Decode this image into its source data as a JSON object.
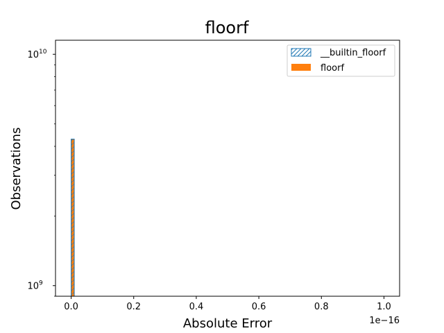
{
  "chart_data": {
    "type": "bar",
    "title": "floorf",
    "xlabel": "Absolute Error",
    "ylabel": "Observations",
    "x_offset_label": "1e−16",
    "xlim": [
      -0.05,
      1.05
    ],
    "x_ticks": [
      0.0,
      0.2,
      0.4,
      0.6,
      0.8,
      1.0
    ],
    "x_tick_labels": [
      "0.0",
      "0.2",
      "0.4",
      "0.6",
      "0.8",
      "1.0"
    ],
    "yscale": "log",
    "ylim": [
      900000000,
      11500000000
    ],
    "y_ticks": [
      {
        "value": 1000000000,
        "base": "10",
        "exp": "9"
      },
      {
        "value": 10000000000,
        "base": "10",
        "exp": "10"
      }
    ],
    "grid": false,
    "legend_position": "top-right",
    "series": [
      {
        "name": "__builtin_floorf",
        "style": "hatched-outline",
        "color": "#1f77b4",
        "bins": [
          {
            "x0": 0.0,
            "x1": 0.01,
            "count": 4300000000
          }
        ]
      },
      {
        "name": "floorf",
        "style": "filled",
        "color": "#ff7f0e",
        "bins": [
          {
            "x0": 0.0,
            "x1": 0.01,
            "count": 4300000000
          }
        ]
      }
    ]
  }
}
